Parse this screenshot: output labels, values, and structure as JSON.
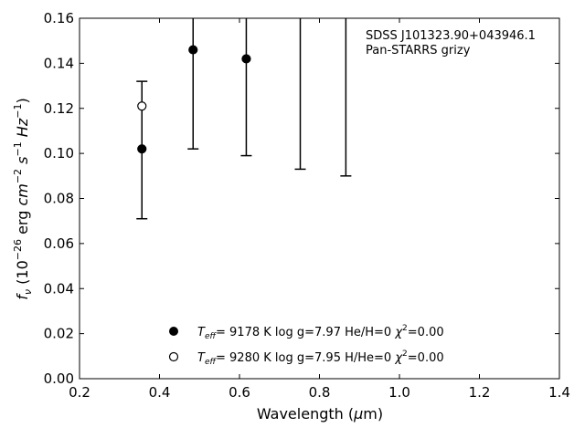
{
  "chart_data": {
    "type": "scatter",
    "title": "",
    "xlabel": "Wavelength (μm)",
    "ylabel": "f_ν (10^-26 erg cm^-2 s^-1 Hz^-1)",
    "xlim": [
      0.2,
      1.4
    ],
    "ylim": [
      0.0,
      0.16
    ],
    "x_ticks": [
      "0.2",
      "0.4",
      "0.6",
      "0.8",
      "1.0",
      "1.2",
      "1.4"
    ],
    "y_ticks": [
      "0.00",
      "0.02",
      "0.04",
      "0.06",
      "0.08",
      "0.10",
      "0.12",
      "0.14",
      "0.16"
    ],
    "grid": false,
    "legend_position": "bottom-center",
    "annotation": [
      "SDSS J101323.90+043946.1",
      "Pan-STARRS grizy"
    ],
    "errorbars": [
      {
        "x": 0.356,
        "lower": 0.071,
        "upper": 0.132
      },
      {
        "x": 0.484,
        "lower": 0.102,
        "upper": 0.18
      },
      {
        "x": 0.617,
        "lower": 0.099,
        "upper": 0.18
      },
      {
        "x": 0.752,
        "lower": 0.093,
        "upper": 0.18
      },
      {
        "x": 0.866,
        "lower": 0.09,
        "upper": 0.18
      }
    ],
    "series": [
      {
        "marker": "filled-circle",
        "legend": {
          "teff_value": "9178 K",
          "logg": "log g=7.97",
          "comp": "He/H=0",
          "chi_value": "=0.00"
        },
        "points": [
          {
            "x": 0.356,
            "y": 0.102
          },
          {
            "x": 0.484,
            "y": 0.146
          },
          {
            "x": 0.617,
            "y": 0.142
          }
        ]
      },
      {
        "marker": "open-circle",
        "legend": {
          "teff_value": "9280 K",
          "logg": "log g=7.95",
          "comp": "H/He=0",
          "chi_value": "=0.00"
        },
        "points": [
          {
            "x": 0.356,
            "y": 0.121
          }
        ]
      }
    ]
  }
}
